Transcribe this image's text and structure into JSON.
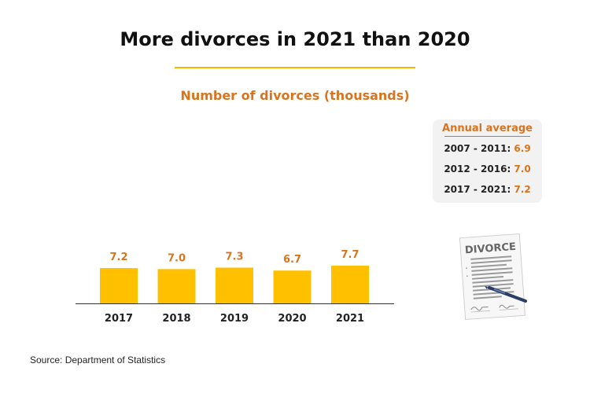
{
  "header": {
    "title": "More divorces in 2021 than 2020",
    "subtitle": "Number of divorces (thousands)"
  },
  "annual_average": {
    "title": "Annual average",
    "rows": [
      {
        "label": "2007 - 2011: ",
        "value": "6.9"
      },
      {
        "label": "2012 - 2016: ",
        "value": "7.0"
      },
      {
        "label": "2017 - 2021: ",
        "value": "7.2"
      }
    ]
  },
  "illustration": {
    "document_text": "DIVORCE",
    "icon": "divorce-document-icon"
  },
  "source": "Source: Department of Statistics",
  "colors": {
    "bar": "#ffc000",
    "accent": "#d9741c",
    "title_rule": "#f2b800",
    "axis": "#333333"
  },
  "chart_data": {
    "type": "bar",
    "title": "More divorces in 2021 than 2020",
    "subtitle": "Number of divorces (thousands)",
    "categories": [
      "2017",
      "2018",
      "2019",
      "2020",
      "2021"
    ],
    "values": [
      7.2,
      7.0,
      7.3,
      6.7,
      7.7
    ],
    "data_labels": [
      "7.2",
      "7.0",
      "7.3",
      "6.7",
      "7.7"
    ],
    "xlabel": "",
    "ylabel": "",
    "ylim": [
      0,
      7.7
    ],
    "grid": false,
    "legend": "none"
  }
}
